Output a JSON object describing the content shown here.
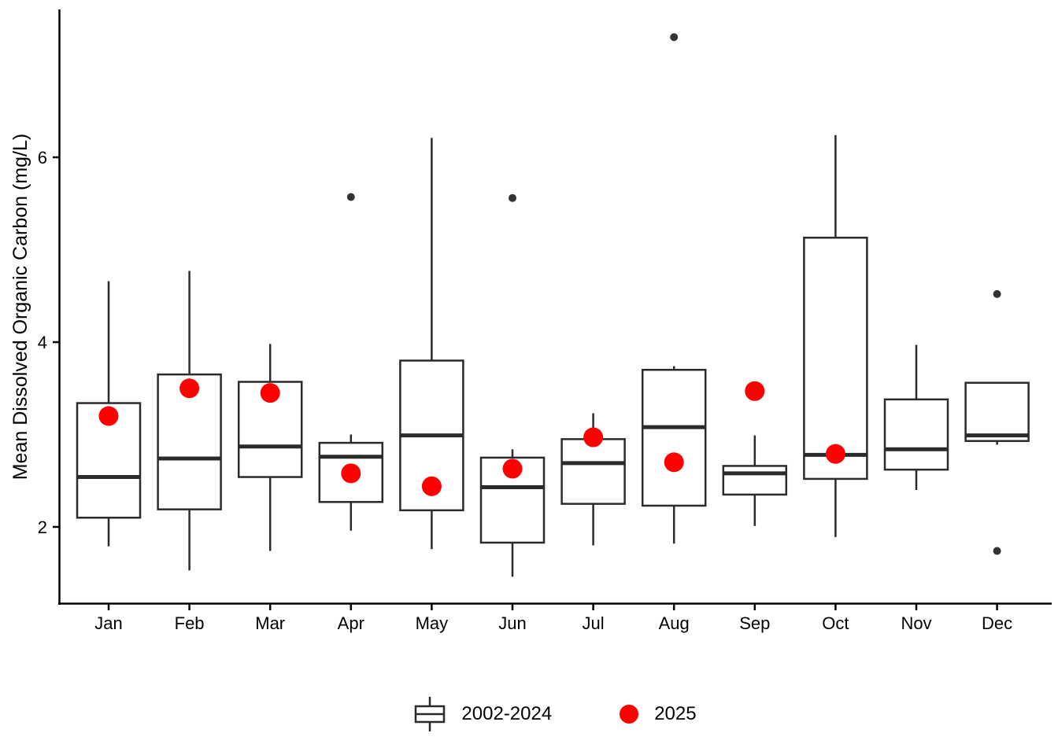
{
  "chart_data": {
    "type": "boxplot",
    "title": "",
    "xlabel": "",
    "ylabel": "Mean Dissolved Organic Carbon (mg/L)",
    "y_ticks": [
      2,
      4,
      6
    ],
    "ylim": [
      1.15,
      7.6
    ],
    "grid": false,
    "legend_position": "bottom-center",
    "categories": [
      "Jan",
      "Feb",
      "Mar",
      "Apr",
      "May",
      "Jun",
      "Jul",
      "Aug",
      "Sep",
      "Oct",
      "Nov",
      "Dec"
    ],
    "series": [
      {
        "name": "2002-2024",
        "type": "boxplot",
        "stroke_color": "#2b2b2b",
        "fill_color": "#ffffff",
        "outlier_color": "#333333",
        "boxes": [
          {
            "month": "Jan",
            "low": 1.79,
            "q1": 2.1,
            "median": 2.54,
            "q3": 3.34,
            "high": 4.66,
            "outliers": []
          },
          {
            "month": "Feb",
            "low": 1.53,
            "q1": 2.19,
            "median": 2.74,
            "q3": 3.65,
            "high": 4.77,
            "outliers": []
          },
          {
            "month": "Mar",
            "low": 1.74,
            "q1": 2.54,
            "median": 2.87,
            "q3": 3.57,
            "high": 3.98,
            "outliers": []
          },
          {
            "month": "Apr",
            "low": 1.96,
            "q1": 2.27,
            "median": 2.76,
            "q3": 2.91,
            "high": 3.0,
            "outliers": [
              5.57
            ]
          },
          {
            "month": "May",
            "low": 1.76,
            "q1": 2.18,
            "median": 2.99,
            "q3": 3.8,
            "high": 6.21,
            "outliers": []
          },
          {
            "month": "Jun",
            "low": 1.46,
            "q1": 1.83,
            "median": 2.43,
            "q3": 2.75,
            "high": 2.84,
            "outliers": [
              5.56
            ]
          },
          {
            "month": "Jul",
            "low": 1.8,
            "q1": 2.25,
            "median": 2.69,
            "q3": 2.95,
            "high": 3.23,
            "outliers": []
          },
          {
            "month": "Aug",
            "low": 1.82,
            "q1": 2.23,
            "median": 3.08,
            "q3": 3.7,
            "high": 3.74,
            "outliers": [
              7.3
            ]
          },
          {
            "month": "Sep",
            "low": 2.01,
            "q1": 2.35,
            "median": 2.58,
            "q3": 2.66,
            "high": 2.99,
            "outliers": []
          },
          {
            "month": "Oct",
            "low": 1.89,
            "q1": 2.52,
            "median": 2.78,
            "q3": 5.13,
            "high": 6.24,
            "outliers": []
          },
          {
            "month": "Nov",
            "low": 2.4,
            "q1": 2.62,
            "median": 2.84,
            "q3": 3.38,
            "high": 3.97,
            "outliers": []
          },
          {
            "month": "Dec",
            "low": 2.89,
            "q1": 2.93,
            "median": 2.99,
            "q3": 3.56,
            "high": 3.57,
            "outliers": [
              4.52,
              1.74
            ]
          }
        ]
      },
      {
        "name": "2025",
        "type": "points",
        "color": "#ff0000",
        "values": [
          3.2,
          3.5,
          3.45,
          2.58,
          2.44,
          2.63,
          2.97,
          2.7,
          3.47,
          2.79,
          null,
          null
        ]
      }
    ]
  },
  "colors": {
    "axis": "#000000",
    "box_stroke": "#2b2b2b",
    "outlier": "#333333",
    "dot_2025": "#ff0000",
    "background": "#ffffff"
  }
}
